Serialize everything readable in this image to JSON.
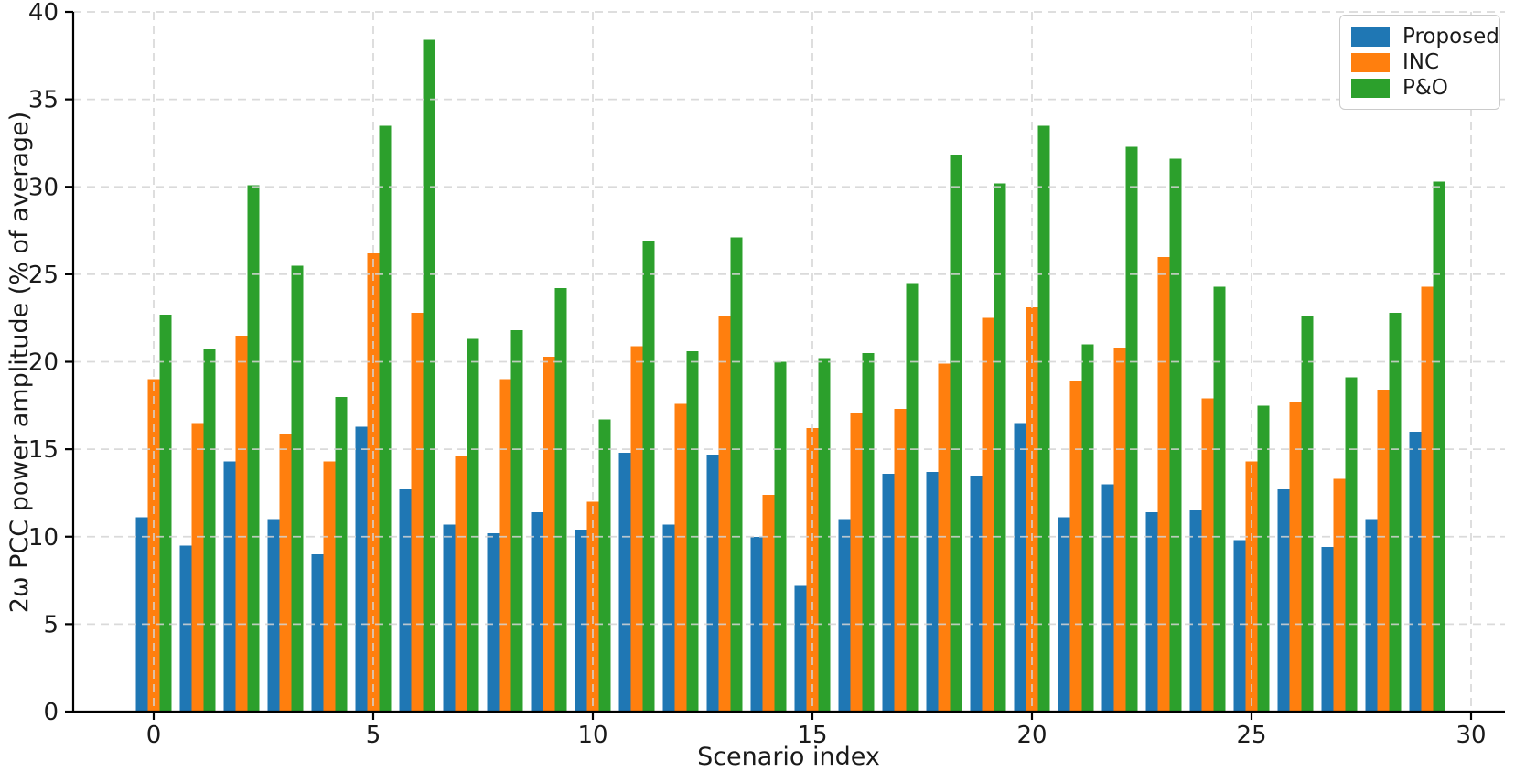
{
  "figure": {
    "background": "#ffffff",
    "spine_color": "#000000",
    "grid_color": "#d4d4d4"
  },
  "chart_data": {
    "type": "bar",
    "title": "",
    "xlabel": "Scenario index",
    "ylabel": "2ω PCC power amplitude (% of average)",
    "categories": [
      0,
      1,
      2,
      3,
      4,
      5,
      6,
      7,
      8,
      9,
      10,
      11,
      12,
      13,
      14,
      15,
      16,
      17,
      18,
      19,
      20,
      21,
      22,
      23,
      24,
      25,
      26,
      27,
      28,
      29
    ],
    "series": [
      {
        "name": "Proposed",
        "color": "#1f77b4",
        "values": [
          11.1,
          9.5,
          14.3,
          11.0,
          9.0,
          16.3,
          12.7,
          10.7,
          10.2,
          11.4,
          10.4,
          14.8,
          10.7,
          14.7,
          10.0,
          7.2,
          11.0,
          13.6,
          13.7,
          13.5,
          16.5,
          11.1,
          13.0,
          11.4,
          11.5,
          9.8,
          12.7,
          9.4,
          11.0,
          16.0
        ]
      },
      {
        "name": "INC",
        "color": "#ff7f0e",
        "values": [
          19.0,
          16.5,
          21.5,
          15.9,
          14.3,
          26.2,
          22.8,
          14.6,
          19.0,
          20.3,
          12.0,
          20.9,
          17.6,
          22.6,
          12.4,
          16.2,
          17.1,
          17.3,
          19.9,
          22.5,
          23.1,
          18.9,
          20.8,
          26.0,
          17.9,
          14.3,
          17.7,
          13.3,
          18.4,
          24.3
        ]
      },
      {
        "name": "P&O",
        "color": "#2ca02c",
        "values": [
          22.7,
          20.7,
          30.1,
          25.5,
          18.0,
          33.5,
          38.4,
          21.3,
          21.8,
          24.2,
          16.7,
          26.9,
          20.6,
          27.1,
          20.0,
          20.2,
          20.5,
          24.5,
          31.8,
          30.2,
          33.5,
          21.0,
          32.3,
          31.6,
          24.3,
          17.5,
          22.6,
          19.1,
          22.8,
          30.3
        ]
      }
    ],
    "ylim": [
      0,
      40
    ],
    "yticks": [
      0,
      5,
      10,
      15,
      20,
      25,
      30,
      35,
      40
    ],
    "ytick_labels": [
      "0",
      "5",
      "10",
      "15",
      "20",
      "25",
      "30",
      "35",
      "40"
    ],
    "xticks": [
      0,
      5,
      10,
      15,
      20,
      25,
      30
    ],
    "xtick_labels": [
      "0",
      "5",
      "10",
      "15",
      "20",
      "25",
      "30"
    ],
    "bar_width_units": 0.27,
    "grid": {
      "visible": true,
      "style": "dashed",
      "drawn_over_bars": true
    },
    "legend": {
      "position": "upper right",
      "entries": [
        "Proposed",
        "INC",
        "P&O"
      ]
    }
  }
}
